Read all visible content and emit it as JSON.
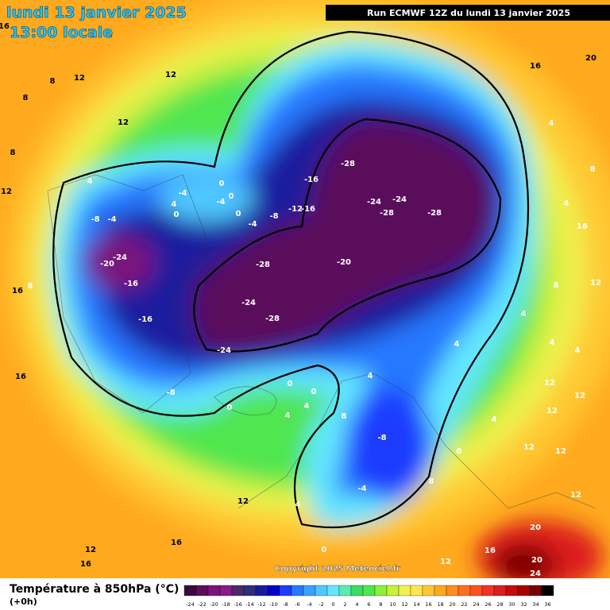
{
  "header": {
    "date": "lundi 13 janvier 2025",
    "time_label": "13:00 locale",
    "run": "Run ECMWF 12Z du lundi 13 janvier 2025"
  },
  "map": {
    "labels": [
      16,
      8,
      12,
      12,
      8,
      12,
      8,
      12,
      4,
      -4,
      0,
      0,
      4,
      0,
      -4,
      0,
      -4,
      -8,
      -12,
      -16,
      -16,
      -28,
      -24,
      -24,
      -28,
      -28,
      -8,
      -4,
      -24,
      -20,
      -16,
      -16,
      -28,
      -24,
      -28,
      -20,
      -24,
      -8,
      0,
      0,
      0,
      4,
      4,
      4,
      8,
      -8,
      4,
      -4,
      8,
      0,
      0,
      12,
      16,
      12,
      16,
      16,
      8,
      16,
      4,
      4,
      8,
      4,
      16,
      8,
      12,
      4,
      4,
      4,
      12,
      12,
      12,
      12,
      12,
      12,
      4,
      20,
      20,
      24,
      16,
      12,
      20,
      16
    ]
  },
  "footer": {
    "copyright": "Copyright 2025 Meteociel.fr"
  },
  "legend": {
    "title": "Température à 850hPa (°C)",
    "lead": "(+0h)",
    "ticks": [
      -24,
      -22,
      -20,
      -18,
      -16,
      -14,
      -12,
      -10,
      -8,
      -6,
      -4,
      -2,
      0,
      2,
      4,
      6,
      8,
      10,
      12,
      14,
      16,
      18,
      20,
      22,
      24,
      26,
      28,
      30,
      32,
      34,
      36
    ],
    "colors": [
      "#3b0a3b",
      "#5a0f5a",
      "#7a157a",
      "#8b1a8b",
      "#4a2a6a",
      "#2e2e7e",
      "#1a1a9e",
      "#0000c8",
      "#1e3cff",
      "#2878ff",
      "#3ca0ff",
      "#50c8ff",
      "#64e6ff",
      "#5aeab4",
      "#3cdc64",
      "#50e650",
      "#8cf03c",
      "#c8f03c",
      "#f0f050",
      "#ffe650",
      "#ffc832",
      "#ffaa1e",
      "#ff8c1e",
      "#ff6e1e",
      "#ff501e",
      "#f03228",
      "#dc1e1e",
      "#c80a0a",
      "#aa0000",
      "#780000",
      "#000000"
    ]
  }
}
